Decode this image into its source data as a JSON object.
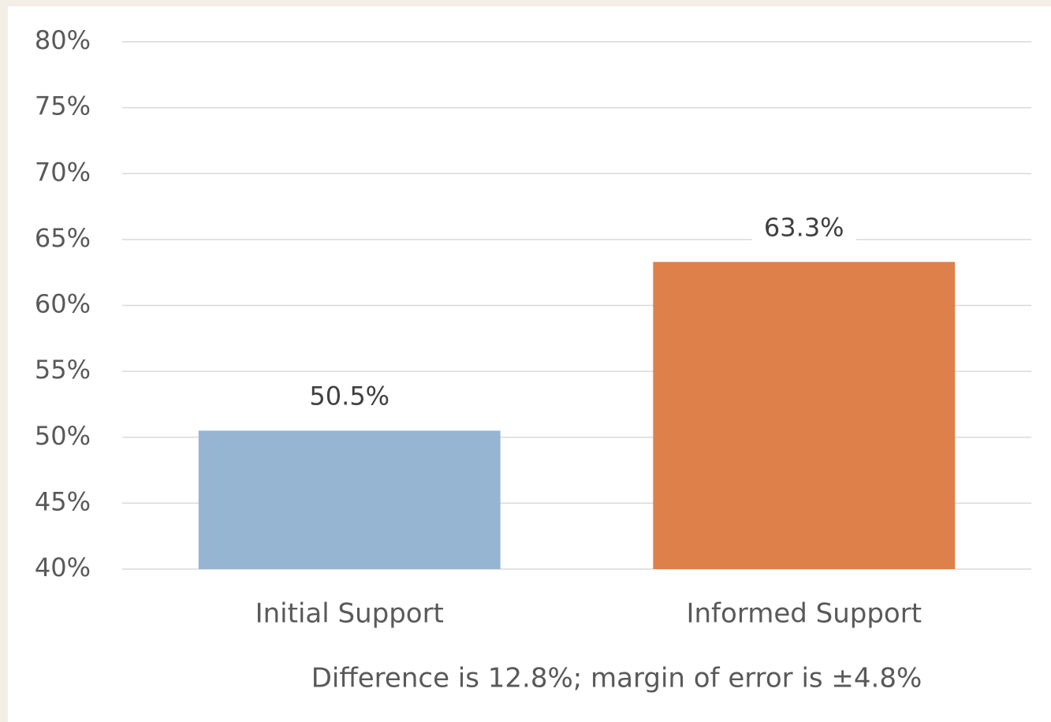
{
  "chart_data": {
    "type": "bar",
    "categories": [
      "Initial Support",
      "Informed Support"
    ],
    "values": [
      50.5,
      63.3
    ],
    "value_labels": [
      "50.5%",
      "63.3%"
    ],
    "colors": [
      "#95b5d3",
      "#dd8049"
    ],
    "ylim": [
      40,
      80
    ],
    "yticks": [
      {
        "value": 40,
        "label": "40%"
      },
      {
        "value": 45,
        "label": "45%"
      },
      {
        "value": 50,
        "label": "50%"
      },
      {
        "value": 55,
        "label": "55%"
      },
      {
        "value": 60,
        "label": "60%"
      },
      {
        "value": 65,
        "label": "65%"
      },
      {
        "value": 70,
        "label": "70%"
      },
      {
        "value": 75,
        "label": "75%"
      },
      {
        "value": 80,
        "label": "80%"
      }
    ],
    "grid": true,
    "annotation": "Difference is 12.8%; margin of error is ±4.8%"
  }
}
